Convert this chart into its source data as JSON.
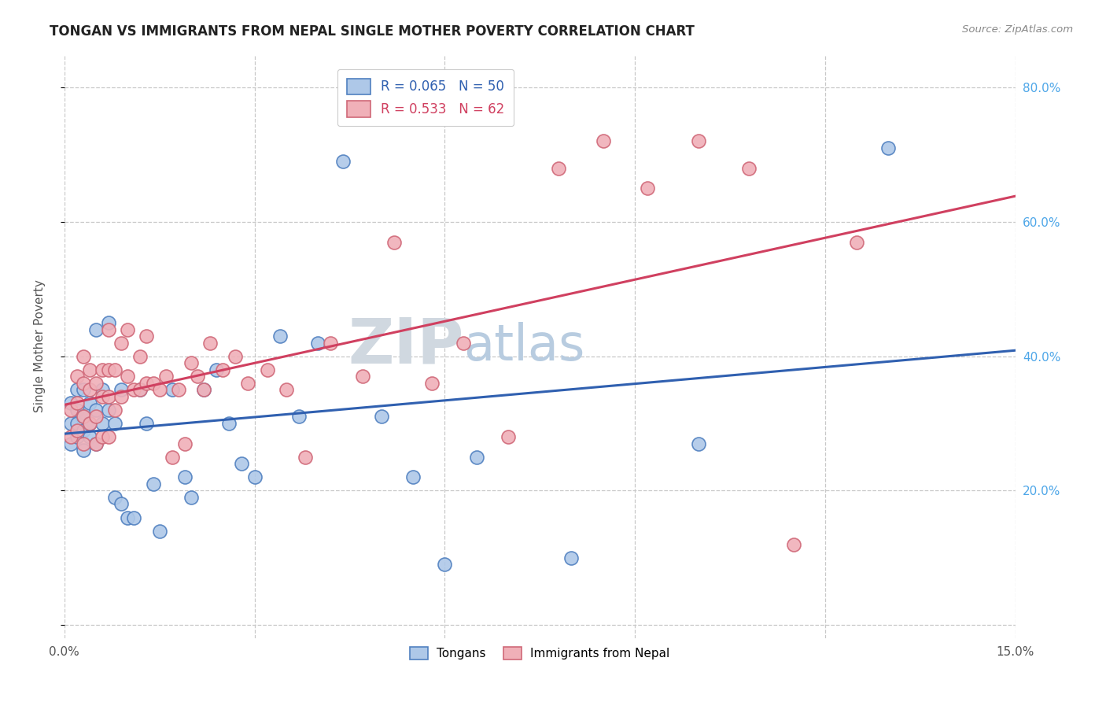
{
  "title": "TONGAN VS IMMIGRANTS FROM NEPAL SINGLE MOTHER POVERTY CORRELATION CHART",
  "source": "Source: ZipAtlas.com",
  "ylabel": "Single Mother Poverty",
  "ylabel_right_labels": [
    "",
    "20.0%",
    "40.0%",
    "60.0%",
    "80.0%"
  ],
  "legend_blue_r": "R = 0.065",
  "legend_blue_n": "N = 50",
  "legend_pink_r": "R = 0.533",
  "legend_pink_n": "N = 62",
  "legend_label_blue": "Tongans",
  "legend_label_pink": "Immigrants from Nepal",
  "blue_fill": "#aec8e8",
  "blue_edge": "#5080c0",
  "pink_fill": "#f0b0b8",
  "pink_edge": "#d06878",
  "blue_line_color": "#3060b0",
  "pink_line_color": "#d04060",
  "blue_scatter": {
    "x": [
      0.001,
      0.001,
      0.001,
      0.002,
      0.002,
      0.002,
      0.002,
      0.003,
      0.003,
      0.003,
      0.003,
      0.004,
      0.004,
      0.004,
      0.005,
      0.005,
      0.005,
      0.006,
      0.006,
      0.007,
      0.007,
      0.008,
      0.008,
      0.009,
      0.009,
      0.01,
      0.011,
      0.012,
      0.013,
      0.014,
      0.015,
      0.017,
      0.019,
      0.02,
      0.022,
      0.024,
      0.026,
      0.028,
      0.03,
      0.034,
      0.037,
      0.04,
      0.044,
      0.05,
      0.055,
      0.06,
      0.065,
      0.08,
      0.1,
      0.13
    ],
    "y": [
      0.3,
      0.27,
      0.33,
      0.28,
      0.32,
      0.35,
      0.3,
      0.31,
      0.26,
      0.29,
      0.35,
      0.3,
      0.28,
      0.33,
      0.44,
      0.32,
      0.27,
      0.35,
      0.3,
      0.32,
      0.45,
      0.3,
      0.19,
      0.35,
      0.18,
      0.16,
      0.16,
      0.35,
      0.3,
      0.21,
      0.14,
      0.35,
      0.22,
      0.19,
      0.35,
      0.38,
      0.3,
      0.24,
      0.22,
      0.43,
      0.31,
      0.42,
      0.69,
      0.31,
      0.22,
      0.09,
      0.25,
      0.1,
      0.27,
      0.71
    ]
  },
  "pink_scatter": {
    "x": [
      0.001,
      0.001,
      0.002,
      0.002,
      0.002,
      0.003,
      0.003,
      0.003,
      0.003,
      0.004,
      0.004,
      0.004,
      0.005,
      0.005,
      0.005,
      0.006,
      0.006,
      0.006,
      0.007,
      0.007,
      0.007,
      0.007,
      0.008,
      0.008,
      0.009,
      0.009,
      0.01,
      0.01,
      0.011,
      0.012,
      0.012,
      0.013,
      0.013,
      0.014,
      0.015,
      0.016,
      0.017,
      0.018,
      0.019,
      0.02,
      0.021,
      0.022,
      0.023,
      0.025,
      0.027,
      0.029,
      0.032,
      0.035,
      0.038,
      0.042,
      0.047,
      0.052,
      0.058,
      0.063,
      0.07,
      0.078,
      0.085,
      0.092,
      0.1,
      0.108,
      0.115,
      0.125
    ],
    "y": [
      0.28,
      0.32,
      0.29,
      0.33,
      0.37,
      0.27,
      0.31,
      0.36,
      0.4,
      0.3,
      0.35,
      0.38,
      0.27,
      0.31,
      0.36,
      0.28,
      0.34,
      0.38,
      0.28,
      0.34,
      0.38,
      0.44,
      0.32,
      0.38,
      0.34,
      0.42,
      0.37,
      0.44,
      0.35,
      0.35,
      0.4,
      0.36,
      0.43,
      0.36,
      0.35,
      0.37,
      0.25,
      0.35,
      0.27,
      0.39,
      0.37,
      0.35,
      0.42,
      0.38,
      0.4,
      0.36,
      0.38,
      0.35,
      0.25,
      0.42,
      0.37,
      0.57,
      0.36,
      0.42,
      0.28,
      0.68,
      0.72,
      0.65,
      0.72,
      0.68,
      0.12,
      0.57
    ]
  },
  "xlim": [
    0.0,
    0.15
  ],
  "ylim": [
    -0.02,
    0.85
  ],
  "yticks": [
    0.0,
    0.2,
    0.4,
    0.6,
    0.8
  ],
  "xticks": [
    0.0,
    0.03,
    0.06,
    0.09,
    0.12,
    0.15
  ],
  "watermark_zip": "ZIP",
  "watermark_atlas": "atlas",
  "watermark_zip_color": "#d0d8e0",
  "watermark_atlas_color": "#b8cce0",
  "background_color": "#ffffff",
  "grid_color": "#c8c8c8",
  "title_color": "#222222",
  "source_color": "#888888",
  "ylabel_color": "#555555",
  "tick_color": "#555555",
  "right_tick_color": "#4da6e8"
}
